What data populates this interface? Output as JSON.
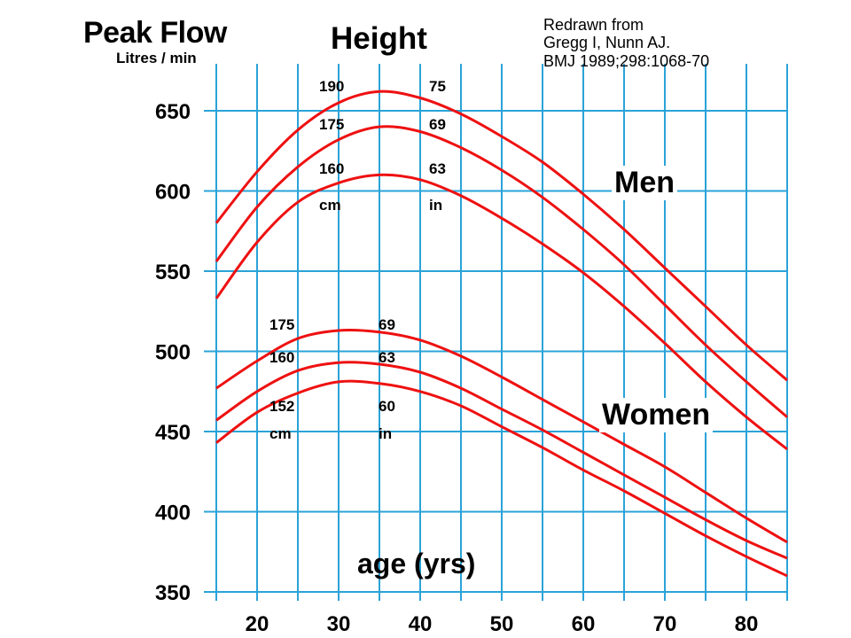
{
  "chart_data": {
    "type": "line",
    "title": "Peak Flow",
    "ylabel": "Litres / min",
    "heading": "Height",
    "xlabel": "age (yrs)",
    "credit": [
      "Redrawn from",
      "Gregg I, Nunn AJ.",
      "BMJ 1989;298:1068-70"
    ],
    "xlim": [
      15,
      85
    ],
    "ylim": [
      350,
      660
    ],
    "xticks": [
      20,
      30,
      40,
      50,
      60,
      70,
      80
    ],
    "yticks": [
      350,
      400,
      450,
      500,
      550,
      600,
      650
    ],
    "grid": true,
    "line_color": "#ee1111",
    "grid_color": "#2aa3d8",
    "groups": [
      {
        "label": "Men",
        "height_cm_unit": "cm",
        "height_in_unit": "in",
        "series": [
          {
            "height_cm": "190",
            "height_in": "75",
            "points": [
              [
                15,
                580
              ],
              [
                20,
                612
              ],
              [
                25,
                638
              ],
              [
                30,
                655
              ],
              [
                35,
                662
              ],
              [
                40,
                658
              ],
              [
                45,
                648
              ],
              [
                50,
                634
              ],
              [
                55,
                618
              ],
              [
                60,
                598
              ],
              [
                65,
                576
              ],
              [
                70,
                552
              ],
              [
                75,
                528
              ],
              [
                80,
                504
              ],
              [
                85,
                482
              ]
            ]
          },
          {
            "height_cm": "175",
            "height_in": "69",
            "points": [
              [
                15,
                556
              ],
              [
                20,
                590
              ],
              [
                25,
                615
              ],
              [
                30,
                632
              ],
              [
                35,
                640
              ],
              [
                40,
                637
              ],
              [
                45,
                627
              ],
              [
                50,
                613
              ],
              [
                55,
                596
              ],
              [
                60,
                576
              ],
              [
                65,
                554
              ],
              [
                70,
                529
              ],
              [
                75,
                504
              ],
              [
                80,
                481
              ],
              [
                85,
                459
              ]
            ]
          },
          {
            "height_cm": "160",
            "height_in": "63",
            "points": [
              [
                15,
                533
              ],
              [
                20,
                568
              ],
              [
                25,
                593
              ],
              [
                30,
                605
              ],
              [
                35,
                610
              ],
              [
                40,
                607
              ],
              [
                45,
                597
              ],
              [
                50,
                583
              ],
              [
                55,
                567
              ],
              [
                60,
                549
              ],
              [
                65,
                528
              ],
              [
                70,
                505
              ],
              [
                75,
                481
              ],
              [
                80,
                459
              ],
              [
                85,
                439
              ]
            ]
          }
        ]
      },
      {
        "label": "Women",
        "height_cm_unit": "cm",
        "height_in_unit": "in",
        "series": [
          {
            "height_cm": "175",
            "height_in": "69",
            "points": [
              [
                15,
                477
              ],
              [
                20,
                494
              ],
              [
                25,
                508
              ],
              [
                30,
                513
              ],
              [
                35,
                512
              ],
              [
                40,
                507
              ],
              [
                45,
                497
              ],
              [
                50,
                484
              ],
              [
                55,
                470
              ],
              [
                60,
                456
              ],
              [
                65,
                442
              ],
              [
                70,
                428
              ],
              [
                75,
                412
              ],
              [
                80,
                396
              ],
              [
                85,
                381
              ]
            ]
          },
          {
            "height_cm": "160",
            "height_in": "63",
            "points": [
              [
                15,
                457
              ],
              [
                20,
                475
              ],
              [
                25,
                488
              ],
              [
                30,
                493
              ],
              [
                35,
                492
              ],
              [
                40,
                487
              ],
              [
                45,
                477
              ],
              [
                50,
                464
              ],
              [
                55,
                451
              ],
              [
                60,
                437
              ],
              [
                65,
                423
              ],
              [
                70,
                409
              ],
              [
                75,
                395
              ],
              [
                80,
                382
              ],
              [
                85,
                371
              ]
            ]
          },
          {
            "height_cm": "152",
            "height_in": "60",
            "points": [
              [
                15,
                443
              ],
              [
                20,
                462
              ],
              [
                25,
                474
              ],
              [
                30,
                481
              ],
              [
                35,
                480
              ],
              [
                40,
                475
              ],
              [
                45,
                466
              ],
              [
                50,
                453
              ],
              [
                55,
                440
              ],
              [
                60,
                426
              ],
              [
                65,
                413
              ],
              [
                70,
                399
              ],
              [
                75,
                385
              ],
              [
                80,
                372
              ],
              [
                85,
                360
              ]
            ]
          }
        ]
      }
    ]
  }
}
